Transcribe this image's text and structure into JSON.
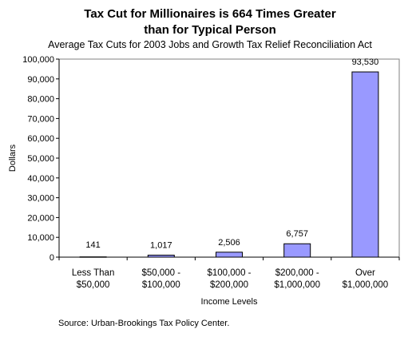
{
  "chart_data": {
    "type": "bar",
    "title_lines": [
      "Tax Cut for Millionaires is 664 Times Greater",
      "than for Typical Person"
    ],
    "subtitle": "Average Tax Cuts for 2003 Jobs and Growth Tax Relief Reconciliation Act",
    "xlabel": "Income Levels",
    "ylabel": "Dollars",
    "ylim": [
      0,
      100000
    ],
    "yticks": [
      0,
      10000,
      20000,
      30000,
      40000,
      50000,
      60000,
      70000,
      80000,
      90000,
      100000
    ],
    "ytick_labels": [
      "0",
      "10,000",
      "20,000",
      "30,000",
      "40,000",
      "50,000",
      "60,000",
      "70,000",
      "80,000",
      "90,000",
      "100,000"
    ],
    "categories": [
      [
        "Less Than",
        "$50,000"
      ],
      [
        "$50,000 -",
        "$100,000"
      ],
      [
        "$100,000 -",
        "$200,000"
      ],
      [
        "$200,000 -",
        "$1,000,000"
      ],
      [
        "Over",
        "$1,000,000"
      ]
    ],
    "values": [
      141,
      1017,
      2506,
      6757,
      93530
    ],
    "value_labels": [
      "141",
      "1,017",
      "2,506",
      "6,757",
      "93,530"
    ],
    "bar_color": "#9999ff",
    "grid": false,
    "legend": "none"
  },
  "source": "Source: Urban-Brookings Tax Policy Center."
}
